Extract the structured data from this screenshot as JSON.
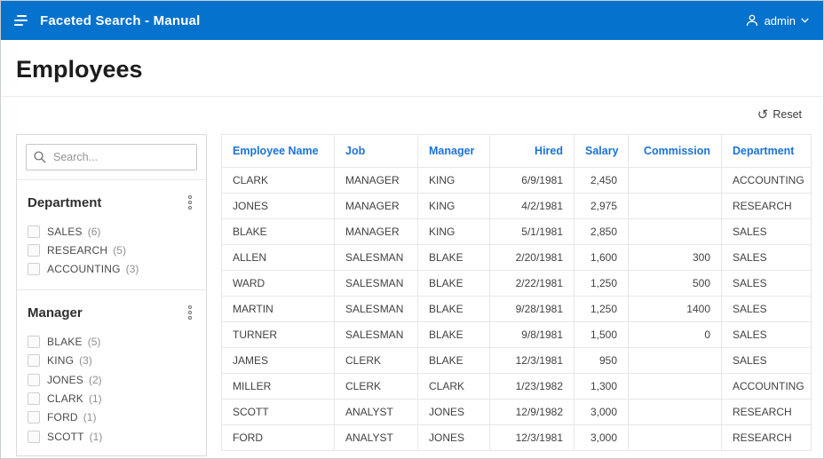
{
  "colors": {
    "banner": "#0572CE",
    "accent": "#1B73D7"
  },
  "banner": {
    "app_title": "Faceted Search - Manual",
    "user_label": "admin"
  },
  "page": {
    "title": "Employees",
    "reset_label": "Reset",
    "reset_icon_glyph": "↺"
  },
  "facets": {
    "search_placeholder": "Search...",
    "groups": [
      {
        "label": "Department",
        "items": [
          {
            "label": "SALES",
            "count": 6
          },
          {
            "label": "RESEARCH",
            "count": 5
          },
          {
            "label": "ACCOUNTING",
            "count": 3
          }
        ]
      },
      {
        "label": "Manager",
        "items": [
          {
            "label": "BLAKE",
            "count": 5
          },
          {
            "label": "KING",
            "count": 3
          },
          {
            "label": "JONES",
            "count": 2
          },
          {
            "label": "CLARK",
            "count": 1
          },
          {
            "label": "FORD",
            "count": 1
          },
          {
            "label": "SCOTT",
            "count": 1
          }
        ]
      }
    ]
  },
  "report": {
    "columns": [
      {
        "label": "Employee Name",
        "align": "left"
      },
      {
        "label": "Job",
        "align": "left"
      },
      {
        "label": "Manager",
        "align": "left"
      },
      {
        "label": "Hired",
        "align": "right"
      },
      {
        "label": "Salary",
        "align": "right"
      },
      {
        "label": "Commission",
        "align": "right"
      },
      {
        "label": "Department",
        "align": "left"
      }
    ],
    "rows": [
      [
        "CLARK",
        "MANAGER",
        "KING",
        "6/9/1981",
        "2,450",
        "",
        "ACCOUNTING"
      ],
      [
        "JONES",
        "MANAGER",
        "KING",
        "4/2/1981",
        "2,975",
        "",
        "RESEARCH"
      ],
      [
        "BLAKE",
        "MANAGER",
        "KING",
        "5/1/1981",
        "2,850",
        "",
        "SALES"
      ],
      [
        "ALLEN",
        "SALESMAN",
        "BLAKE",
        "2/20/1981",
        "1,600",
        "300",
        "SALES"
      ],
      [
        "WARD",
        "SALESMAN",
        "BLAKE",
        "2/22/1981",
        "1,250",
        "500",
        "SALES"
      ],
      [
        "MARTIN",
        "SALESMAN",
        "BLAKE",
        "9/28/1981",
        "1,250",
        "1400",
        "SALES"
      ],
      [
        "TURNER",
        "SALESMAN",
        "BLAKE",
        "9/8/1981",
        "1,500",
        "0",
        "SALES"
      ],
      [
        "JAMES",
        "CLERK",
        "BLAKE",
        "12/3/1981",
        "950",
        "",
        "SALES"
      ],
      [
        "MILLER",
        "CLERK",
        "CLARK",
        "1/23/1982",
        "1,300",
        "",
        "ACCOUNTING"
      ],
      [
        "SCOTT",
        "ANALYST",
        "JONES",
        "12/9/1982",
        "3,000",
        "",
        "RESEARCH"
      ],
      [
        "FORD",
        "ANALYST",
        "JONES",
        "12/3/1981",
        "3,000",
        "",
        "RESEARCH"
      ]
    ]
  }
}
